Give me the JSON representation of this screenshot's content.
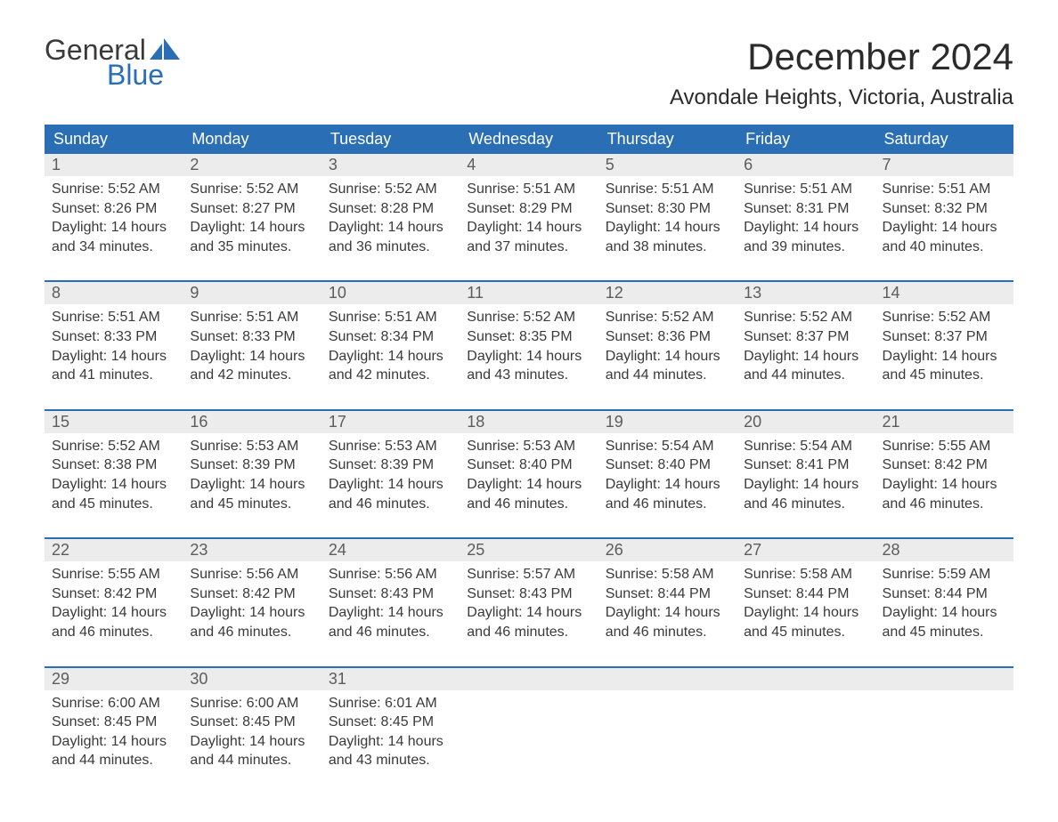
{
  "logo": {
    "word1": "General",
    "word2": "Blue",
    "sail_color": "#2a6fb5",
    "text_color_top": "#3a3a3a",
    "text_color_bottom": "#2a6fb5"
  },
  "title": "December 2024",
  "location": "Avondale Heights, Victoria, Australia",
  "colors": {
    "header_bg": "#2a6fb5",
    "header_fg": "#ffffff",
    "daynum_bg": "#ececec",
    "daynum_fg": "#5c5c5c",
    "body_fg": "#3a3a3a",
    "row_divider": "#2a6fb5",
    "page_bg": "#ffffff"
  },
  "typography": {
    "title_fontsize": 42,
    "location_fontsize": 24,
    "weekday_fontsize": 18,
    "daynum_fontsize": 18,
    "body_fontsize": 16
  },
  "weekdays": [
    "Sunday",
    "Monday",
    "Tuesday",
    "Wednesday",
    "Thursday",
    "Friday",
    "Saturday"
  ],
  "weeks": [
    [
      {
        "n": "1",
        "sr": "Sunrise: 5:52 AM",
        "ss": "Sunset: 8:26 PM",
        "d1": "Daylight: 14 hours",
        "d2": "and 34 minutes."
      },
      {
        "n": "2",
        "sr": "Sunrise: 5:52 AM",
        "ss": "Sunset: 8:27 PM",
        "d1": "Daylight: 14 hours",
        "d2": "and 35 minutes."
      },
      {
        "n": "3",
        "sr": "Sunrise: 5:52 AM",
        "ss": "Sunset: 8:28 PM",
        "d1": "Daylight: 14 hours",
        "d2": "and 36 minutes."
      },
      {
        "n": "4",
        "sr": "Sunrise: 5:51 AM",
        "ss": "Sunset: 8:29 PM",
        "d1": "Daylight: 14 hours",
        "d2": "and 37 minutes."
      },
      {
        "n": "5",
        "sr": "Sunrise: 5:51 AM",
        "ss": "Sunset: 8:30 PM",
        "d1": "Daylight: 14 hours",
        "d2": "and 38 minutes."
      },
      {
        "n": "6",
        "sr": "Sunrise: 5:51 AM",
        "ss": "Sunset: 8:31 PM",
        "d1": "Daylight: 14 hours",
        "d2": "and 39 minutes."
      },
      {
        "n": "7",
        "sr": "Sunrise: 5:51 AM",
        "ss": "Sunset: 8:32 PM",
        "d1": "Daylight: 14 hours",
        "d2": "and 40 minutes."
      }
    ],
    [
      {
        "n": "8",
        "sr": "Sunrise: 5:51 AM",
        "ss": "Sunset: 8:33 PM",
        "d1": "Daylight: 14 hours",
        "d2": "and 41 minutes."
      },
      {
        "n": "9",
        "sr": "Sunrise: 5:51 AM",
        "ss": "Sunset: 8:33 PM",
        "d1": "Daylight: 14 hours",
        "d2": "and 42 minutes."
      },
      {
        "n": "10",
        "sr": "Sunrise: 5:51 AM",
        "ss": "Sunset: 8:34 PM",
        "d1": "Daylight: 14 hours",
        "d2": "and 42 minutes."
      },
      {
        "n": "11",
        "sr": "Sunrise: 5:52 AM",
        "ss": "Sunset: 8:35 PM",
        "d1": "Daylight: 14 hours",
        "d2": "and 43 minutes."
      },
      {
        "n": "12",
        "sr": "Sunrise: 5:52 AM",
        "ss": "Sunset: 8:36 PM",
        "d1": "Daylight: 14 hours",
        "d2": "and 44 minutes."
      },
      {
        "n": "13",
        "sr": "Sunrise: 5:52 AM",
        "ss": "Sunset: 8:37 PM",
        "d1": "Daylight: 14 hours",
        "d2": "and 44 minutes."
      },
      {
        "n": "14",
        "sr": "Sunrise: 5:52 AM",
        "ss": "Sunset: 8:37 PM",
        "d1": "Daylight: 14 hours",
        "d2": "and 45 minutes."
      }
    ],
    [
      {
        "n": "15",
        "sr": "Sunrise: 5:52 AM",
        "ss": "Sunset: 8:38 PM",
        "d1": "Daylight: 14 hours",
        "d2": "and 45 minutes."
      },
      {
        "n": "16",
        "sr": "Sunrise: 5:53 AM",
        "ss": "Sunset: 8:39 PM",
        "d1": "Daylight: 14 hours",
        "d2": "and 45 minutes."
      },
      {
        "n": "17",
        "sr": "Sunrise: 5:53 AM",
        "ss": "Sunset: 8:39 PM",
        "d1": "Daylight: 14 hours",
        "d2": "and 46 minutes."
      },
      {
        "n": "18",
        "sr": "Sunrise: 5:53 AM",
        "ss": "Sunset: 8:40 PM",
        "d1": "Daylight: 14 hours",
        "d2": "and 46 minutes."
      },
      {
        "n": "19",
        "sr": "Sunrise: 5:54 AM",
        "ss": "Sunset: 8:40 PM",
        "d1": "Daylight: 14 hours",
        "d2": "and 46 minutes."
      },
      {
        "n": "20",
        "sr": "Sunrise: 5:54 AM",
        "ss": "Sunset: 8:41 PM",
        "d1": "Daylight: 14 hours",
        "d2": "and 46 minutes."
      },
      {
        "n": "21",
        "sr": "Sunrise: 5:55 AM",
        "ss": "Sunset: 8:42 PM",
        "d1": "Daylight: 14 hours",
        "d2": "and 46 minutes."
      }
    ],
    [
      {
        "n": "22",
        "sr": "Sunrise: 5:55 AM",
        "ss": "Sunset: 8:42 PM",
        "d1": "Daylight: 14 hours",
        "d2": "and 46 minutes."
      },
      {
        "n": "23",
        "sr": "Sunrise: 5:56 AM",
        "ss": "Sunset: 8:42 PM",
        "d1": "Daylight: 14 hours",
        "d2": "and 46 minutes."
      },
      {
        "n": "24",
        "sr": "Sunrise: 5:56 AM",
        "ss": "Sunset: 8:43 PM",
        "d1": "Daylight: 14 hours",
        "d2": "and 46 minutes."
      },
      {
        "n": "25",
        "sr": "Sunrise: 5:57 AM",
        "ss": "Sunset: 8:43 PM",
        "d1": "Daylight: 14 hours",
        "d2": "and 46 minutes."
      },
      {
        "n": "26",
        "sr": "Sunrise: 5:58 AM",
        "ss": "Sunset: 8:44 PM",
        "d1": "Daylight: 14 hours",
        "d2": "and 46 minutes."
      },
      {
        "n": "27",
        "sr": "Sunrise: 5:58 AM",
        "ss": "Sunset: 8:44 PM",
        "d1": "Daylight: 14 hours",
        "d2": "and 45 minutes."
      },
      {
        "n": "28",
        "sr": "Sunrise: 5:59 AM",
        "ss": "Sunset: 8:44 PM",
        "d1": "Daylight: 14 hours",
        "d2": "and 45 minutes."
      }
    ],
    [
      {
        "n": "29",
        "sr": "Sunrise: 6:00 AM",
        "ss": "Sunset: 8:45 PM",
        "d1": "Daylight: 14 hours",
        "d2": "and 44 minutes."
      },
      {
        "n": "30",
        "sr": "Sunrise: 6:00 AM",
        "ss": "Sunset: 8:45 PM",
        "d1": "Daylight: 14 hours",
        "d2": "and 44 minutes."
      },
      {
        "n": "31",
        "sr": "Sunrise: 6:01 AM",
        "ss": "Sunset: 8:45 PM",
        "d1": "Daylight: 14 hours",
        "d2": "and 43 minutes."
      },
      null,
      null,
      null,
      null
    ]
  ]
}
